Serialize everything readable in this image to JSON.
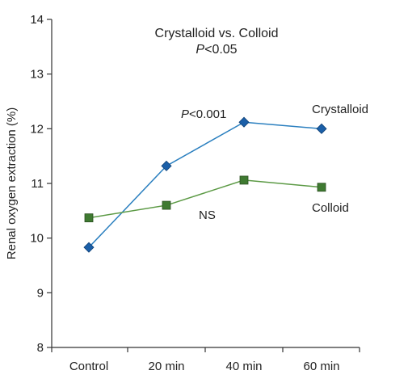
{
  "chart_data": {
    "type": "line",
    "title": "Crystalloid vs. Colloid",
    "subtitle": {
      "italic": "P",
      "rest": "<0.05"
    },
    "xlabel": "",
    "ylabel": "Renal oxygen extraction (%)",
    "categories": [
      "Control",
      "20 min",
      "40 min",
      "60 min"
    ],
    "ylim": [
      8,
      14
    ],
    "yticks": [
      8,
      9,
      10,
      11,
      12,
      13,
      14
    ],
    "grid": false,
    "legend": "none",
    "series": [
      {
        "name": "Crystalloid",
        "marker": "diamond",
        "line_color": "#2a7fbf",
        "marker_color": "#1b5fa8",
        "values": [
          9.83,
          11.32,
          12.12,
          12.0
        ]
      },
      {
        "name": "Colloid",
        "marker": "square",
        "line_color": "#5c9a45",
        "marker_color": "#3f7a31",
        "values": [
          10.37,
          10.6,
          11.06,
          10.93
        ]
      }
    ],
    "annotations": {
      "significance": {
        "italic": "P",
        "rest": "<0.001"
      },
      "ns": "NS"
    }
  }
}
